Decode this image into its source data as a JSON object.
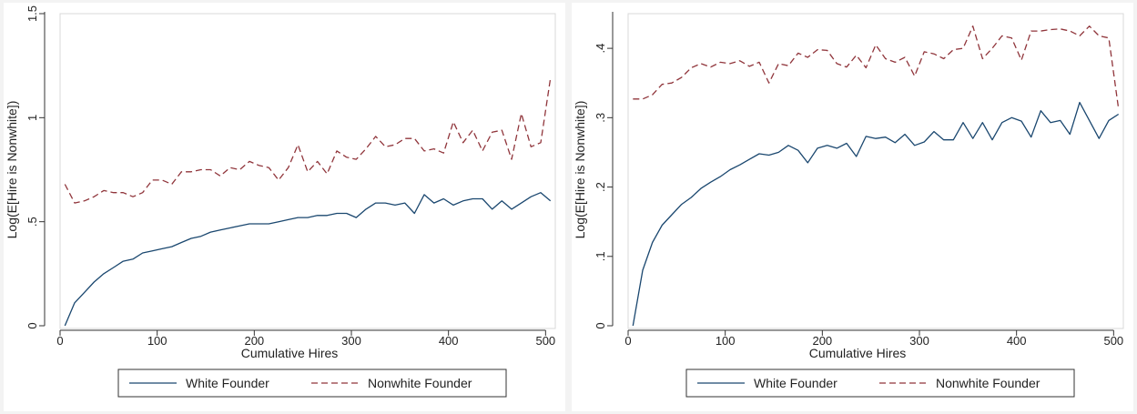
{
  "chart_data": [
    {
      "type": "line",
      "xlabel": "Cumulative Hires",
      "ylabel": "Log(E[Hire is Nonwhite])",
      "xlim": [
        0,
        510
      ],
      "ylim": [
        0,
        1.5
      ],
      "x_ticks": [
        0,
        100,
        200,
        300,
        400,
        500
      ],
      "x_tick_labels": [
        "0",
        "100",
        "200",
        "300",
        "400",
        "500"
      ],
      "y_ticks": [
        0,
        0.5,
        1,
        1.5
      ],
      "y_tick_labels": [
        "0",
        ".5",
        "1",
        "1.5"
      ],
      "legend_position": "bottom",
      "x": [
        5,
        15,
        25,
        35,
        45,
        55,
        65,
        75,
        85,
        95,
        105,
        115,
        125,
        135,
        145,
        155,
        165,
        175,
        185,
        195,
        205,
        215,
        225,
        235,
        245,
        255,
        265,
        275,
        285,
        295,
        305,
        315,
        325,
        335,
        345,
        355,
        365,
        375,
        385,
        395,
        405,
        415,
        425,
        435,
        445,
        455,
        465,
        475,
        485,
        495,
        505
      ],
      "series": [
        {
          "name": "White Founder",
          "color": "#1a476f",
          "dash": "solid",
          "values": [
            0.0,
            0.11,
            0.16,
            0.21,
            0.25,
            0.28,
            0.31,
            0.32,
            0.35,
            0.36,
            0.37,
            0.38,
            0.4,
            0.42,
            0.43,
            0.45,
            0.46,
            0.47,
            0.48,
            0.49,
            0.49,
            0.49,
            0.5,
            0.51,
            0.52,
            0.52,
            0.53,
            0.53,
            0.54,
            0.54,
            0.52,
            0.56,
            0.59,
            0.59,
            0.58,
            0.59,
            0.54,
            0.63,
            0.59,
            0.61,
            0.58,
            0.6,
            0.61,
            0.61,
            0.56,
            0.6,
            0.56,
            0.59,
            0.62,
            0.64,
            0.6
          ]
        },
        {
          "name": "Nonwhite Founder",
          "color": "#90353b",
          "dash": "dashed",
          "values": [
            0.68,
            0.59,
            0.6,
            0.62,
            0.65,
            0.64,
            0.64,
            0.62,
            0.64,
            0.7,
            0.7,
            0.68,
            0.74,
            0.74,
            0.75,
            0.75,
            0.72,
            0.76,
            0.75,
            0.79,
            0.77,
            0.76,
            0.7,
            0.76,
            0.87,
            0.74,
            0.79,
            0.73,
            0.84,
            0.81,
            0.8,
            0.85,
            0.91,
            0.86,
            0.87,
            0.9,
            0.9,
            0.84,
            0.85,
            0.83,
            0.98,
            0.88,
            0.94,
            0.84,
            0.93,
            0.94,
            0.8,
            1.02,
            0.86,
            0.88,
            1.19
          ]
        }
      ]
    },
    {
      "type": "line",
      "xlabel": "Cumulative Hires",
      "ylabel": "Log(E[Hire is Nonwhite])",
      "xlim": [
        0,
        510
      ],
      "ylim": [
        0,
        0.45
      ],
      "x_ticks": [
        0,
        100,
        200,
        300,
        400,
        500
      ],
      "x_tick_labels": [
        "0",
        "100",
        "200",
        "300",
        "400",
        "500"
      ],
      "y_ticks": [
        0,
        0.1,
        0.2,
        0.3,
        0.4
      ],
      "y_tick_labels": [
        "0",
        ".1",
        ".2",
        ".3",
        ".4"
      ],
      "legend_position": "bottom",
      "x": [
        5,
        15,
        25,
        35,
        45,
        55,
        65,
        75,
        85,
        95,
        105,
        115,
        125,
        135,
        145,
        155,
        165,
        175,
        185,
        195,
        205,
        215,
        225,
        235,
        245,
        255,
        265,
        275,
        285,
        295,
        305,
        315,
        325,
        335,
        345,
        355,
        365,
        375,
        385,
        395,
        405,
        415,
        425,
        435,
        445,
        455,
        465,
        475,
        485,
        495,
        505
      ],
      "series": [
        {
          "name": "White Founder",
          "color": "#1a476f",
          "dash": "solid",
          "values": [
            0.0,
            0.08,
            0.12,
            0.145,
            0.16,
            0.175,
            0.185,
            0.198,
            0.207,
            0.215,
            0.225,
            0.232,
            0.24,
            0.248,
            0.246,
            0.25,
            0.26,
            0.253,
            0.235,
            0.256,
            0.26,
            0.256,
            0.263,
            0.244,
            0.273,
            0.27,
            0.272,
            0.264,
            0.276,
            0.26,
            0.265,
            0.28,
            0.268,
            0.268,
            0.293,
            0.27,
            0.293,
            0.268,
            0.293,
            0.3,
            0.295,
            0.272,
            0.31,
            0.293,
            0.296,
            0.276,
            0.322,
            0.296,
            0.27,
            0.296,
            0.305
          ]
        },
        {
          "name": "Nonwhite Founder",
          "color": "#90353b",
          "dash": "dashed",
          "values": [
            0.327,
            0.327,
            0.333,
            0.348,
            0.35,
            0.358,
            0.372,
            0.378,
            0.373,
            0.38,
            0.378,
            0.382,
            0.374,
            0.38,
            0.35,
            0.378,
            0.375,
            0.393,
            0.387,
            0.398,
            0.397,
            0.378,
            0.373,
            0.39,
            0.372,
            0.405,
            0.385,
            0.38,
            0.387,
            0.36,
            0.395,
            0.392,
            0.385,
            0.398,
            0.4,
            0.432,
            0.385,
            0.4,
            0.418,
            0.415,
            0.383,
            0.425,
            0.425,
            0.427,
            0.428,
            0.425,
            0.418,
            0.432,
            0.418,
            0.415,
            0.313
          ]
        }
      ]
    }
  ]
}
